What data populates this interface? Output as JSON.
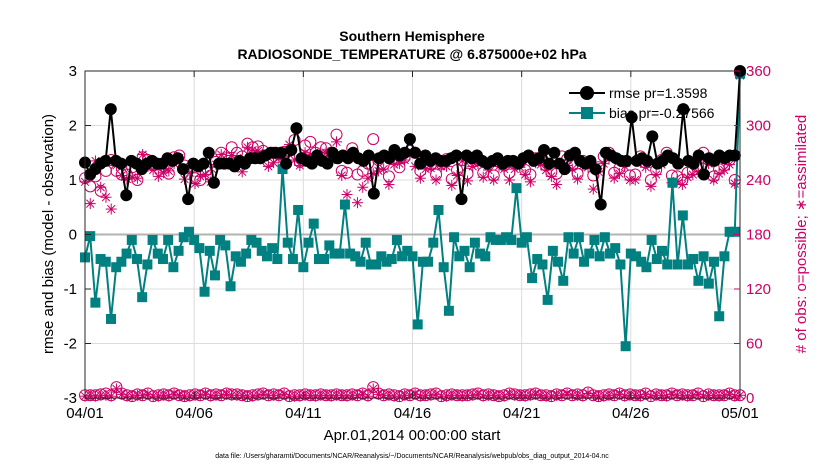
{
  "chart_data": {
    "type": "line",
    "title": "Southern Hemisphere",
    "subtitle": "RADIOSONDE_TEMPERATURE @ 6.875000e+02 hPa",
    "xlabel": "Apr.01,2014 00:00:00 start",
    "ylabel_left": "rmse and bias (model - observation)",
    "ylabel_right": "# of obs: o=possible; ∗=assimilated",
    "footnote": "data file: /Users/gharamti/Documents/NCAR/Reanalysis/~/Documents/NCAR/Reanalysis/webpub/obs_diag_output_2014-04.nc",
    "x_range": [
      0,
      30
    ],
    "y_left_range": [
      -3,
      3
    ],
    "y_right_range": [
      0,
      360
    ],
    "x_ticks": [
      0,
      5,
      10,
      15,
      20,
      25,
      30
    ],
    "x_tick_labels": [
      "04/01",
      "04/06",
      "04/11",
      "04/16",
      "04/21",
      "04/26",
      "05/01"
    ],
    "y_left_ticks": [
      -3,
      -2,
      -1,
      0,
      1,
      2,
      3
    ],
    "y_left_tick_labels": [
      "-3",
      "-2",
      "-1",
      "0",
      "1",
      "2",
      "3"
    ],
    "y_right_ticks": [
      0,
      60,
      120,
      180,
      240,
      300,
      360
    ],
    "y_right_tick_labels": [
      "0",
      "60",
      "120",
      "180",
      "240",
      "300",
      "360"
    ],
    "grid": true,
    "legend_position": "top-right",
    "colors": {
      "rmse": "#000000",
      "bias": "#008080",
      "obs": "#cc0066",
      "zero": "#b3b3b3"
    },
    "series": [
      {
        "name": "rmse pr=1.3598",
        "axis": "left",
        "values": [
          1.32,
          1.1,
          1.2,
          1.3,
          1.35,
          2.3,
          1.35,
          1.3,
          0.72,
          1.35,
          1.3,
          1.2,
          1.3,
          1.35,
          1.3,
          1.3,
          1.4,
          1.35,
          1.4,
          1.2,
          0.65,
          1.3,
          1.25,
          1.3,
          1.5,
          0.95,
          1.3,
          1.3,
          1.3,
          1.25,
          1.35,
          1.3,
          1.4,
          1.4,
          1.4,
          1.45,
          1.5,
          1.5,
          1.5,
          1.3,
          1.55,
          1.95,
          1.4,
          1.35,
          1.3,
          1.45,
          1.35,
          1.3,
          1.5,
          1.4,
          1.45,
          1.4,
          1.5,
          1.4,
          1.35,
          1.45,
          0.75,
          1.4,
          1.45,
          1.4,
          1.55,
          1.45,
          1.5,
          1.75,
          1.5,
          1.3,
          1.45,
          1.35,
          1.4,
          1.35,
          1.35,
          1.4,
          1.45,
          0.65,
          1.45,
          1.4,
          1.45,
          1.35,
          1.3,
          1.35,
          1.4,
          1.3,
          1.35,
          1.35,
          1.3,
          1.4,
          1.45,
          1.35,
          1.4,
          1.55,
          1.3,
          1.5,
          1.3,
          1.2,
          1.45,
          1.5,
          1.35,
          1.3,
          1.35,
          1.2,
          0.55,
          1.5,
          1.45,
          1.4,
          1.35,
          1.35,
          2.15,
          1.35,
          1.4,
          1.35,
          1.8,
          1.3,
          1.35,
          1.45,
          1.4,
          1.3,
          2.3,
          1.35,
          1.3,
          1.45,
          1.1,
          1.4,
          1.35,
          1.45,
          1.4,
          1.45,
          1.45,
          3.0
        ]
      },
      {
        "name": "bias pr=-0.27566",
        "axis": "left",
        "values": [
          -0.42,
          -0.03,
          -1.25,
          -0.45,
          -0.5,
          -1.55,
          -0.6,
          -0.5,
          -0.35,
          -0.1,
          -0.45,
          -1.15,
          -0.55,
          -0.1,
          -0.35,
          -0.45,
          -0.1,
          -0.6,
          -0.3,
          -0.05,
          0.05,
          -0.1,
          -0.25,
          -1.05,
          -0.3,
          -0.75,
          -0.1,
          -0.2,
          -0.95,
          -0.4,
          -0.5,
          -0.35,
          -0.1,
          -0.15,
          -0.3,
          -0.4,
          -0.25,
          -0.45,
          1.2,
          -0.15,
          -0.45,
          0.45,
          -0.6,
          -0.15,
          0.2,
          -0.45,
          -0.45,
          -0.2,
          -0.35,
          -0.35,
          0.55,
          -0.35,
          -0.4,
          -0.5,
          -0.15,
          -0.55,
          -0.55,
          -0.4,
          -0.5,
          -0.45,
          -0.1,
          -0.4,
          -0.3,
          -0.4,
          -1.65,
          -0.5,
          -0.5,
          -0.15,
          0.45,
          -0.6,
          -1.4,
          -0.05,
          -0.4,
          -0.3,
          -0.6,
          -0.15,
          -0.35,
          -0.4,
          -0.05,
          -0.1,
          -0.1,
          -0.05,
          -0.1,
          0.85,
          -0.15,
          -0.05,
          -0.8,
          -0.45,
          -0.55,
          -1.2,
          -0.3,
          -0.5,
          -0.85,
          -0.05,
          -0.35,
          -0.05,
          -0.5,
          -0.35,
          -0.1,
          -0.4,
          -0.05,
          -0.35,
          -0.25,
          -0.55,
          -2.05,
          -0.35,
          -0.4,
          -0.5,
          -0.6,
          -0.1,
          -0.45,
          -0.3,
          -0.55,
          0.95,
          -0.55,
          0.35,
          -0.55,
          -0.45,
          -0.85,
          -0.4,
          -0.9,
          -0.5,
          -1.5,
          -0.4,
          0.05,
          0.05,
          2.95
        ]
      }
    ],
    "obs_count_axis": "right",
    "obs_possible_series": [
      242,
      233,
      244,
      228,
      250,
      262,
      250,
      246,
      246,
      254,
      240,
      265,
      262,
      256,
      257,
      255,
      247,
      265,
      267,
      256,
      253,
      242,
      240,
      250,
      245,
      260,
      270,
      264,
      276,
      270,
      266,
      280,
      276,
      277,
      272,
      260,
      270,
      268,
      271,
      272,
      284,
      260,
      278,
      282,
      270,
      276,
      275,
      270,
      290,
      250,
      248,
      275,
      246,
      250,
      258,
      285,
      262,
      257,
      244,
      270,
      254,
      265,
      272,
      270,
      250,
      262,
      257,
      246,
      258,
      263,
      241,
      251,
      262,
      247,
      260,
      262,
      248,
      257,
      245,
      260,
      256,
      248,
      258,
      259,
      251,
      246,
      264,
      262,
      256,
      249,
      247,
      266,
      263,
      256,
      247,
      261,
      259,
      245,
      254,
      266,
      270,
      248,
      253,
      260,
      245,
      246,
      266,
      259,
      240,
      251,
      262,
      270,
      245,
      244,
      240,
      248,
      251,
      255,
      270,
      262,
      244,
      252,
      256,
      262,
      240,
      358
    ],
    "obs_assim_series": [
      238,
      214,
      261,
      232,
      221,
      208,
      256,
      245,
      241,
      243,
      242,
      268,
      255,
      251,
      244,
      248,
      250,
      258,
      264,
      241,
      248,
      236,
      244,
      246,
      238,
      257,
      268,
      262,
      267,
      264,
      249,
      276,
      273,
      272,
      268,
      255,
      259,
      264,
      260,
      279,
      262,
      256,
      270,
      268,
      265,
      270,
      270,
      262,
      282,
      245,
      224,
      270,
      215,
      232,
      242,
      247,
      250,
      252,
      235,
      257,
      258,
      262,
      268,
      255,
      242,
      252,
      253,
      240,
      255,
      255,
      234,
      245,
      261,
      239,
      255,
      258,
      243,
      251,
      240,
      255,
      252,
      240,
      252,
      254,
      246,
      238,
      259,
      257,
      251,
      244,
      235,
      259,
      256,
      252,
      241,
      256,
      254,
      230,
      249,
      258,
      263,
      242,
      247,
      255,
      240,
      240,
      260,
      254,
      233,
      246,
      257,
      263,
      237,
      239,
      235,
      243,
      246,
      249,
      264,
      258,
      240,
      247,
      251,
      257,
      236,
      355
    ],
    "obs_possible_used": [
      3,
      3,
      3,
      4,
      5,
      3,
      12,
      5,
      3,
      2,
      4,
      3,
      5,
      2,
      3,
      4,
      3,
      5,
      3,
      2,
      3,
      4,
      3,
      5,
      3,
      4,
      3,
      5,
      4,
      4,
      3,
      2,
      3,
      4,
      5,
      3,
      4,
      3,
      5,
      2,
      3,
      3,
      4,
      3,
      3,
      4,
      3,
      3,
      4,
      3,
      3,
      4,
      3,
      5,
      3,
      12,
      5,
      3,
      4,
      3,
      2,
      4,
      3,
      5,
      3,
      3,
      4,
      5,
      2,
      3,
      4,
      3,
      3,
      3,
      4,
      5,
      3,
      4,
      3,
      2,
      3,
      5,
      4,
      3,
      3,
      4,
      5,
      3,
      3,
      2,
      4,
      3,
      5,
      3,
      4,
      3,
      6,
      3,
      2,
      3,
      4,
      3,
      5,
      3,
      4,
      3,
      3,
      5,
      2,
      4,
      3,
      3,
      5,
      3,
      4,
      3,
      3,
      5,
      2,
      4,
      3,
      3,
      3,
      5,
      3,
      3
    ],
    "obs_assim_used": [
      2,
      3,
      2,
      3,
      3,
      2,
      10,
      4,
      2,
      2,
      3,
      3,
      4,
      2,
      2,
      3,
      2,
      4,
      3,
      2,
      2,
      3,
      3,
      4,
      2,
      3,
      3,
      4,
      3,
      3,
      3,
      2,
      2,
      3,
      4,
      3,
      3,
      3,
      4,
      2,
      2,
      2,
      3,
      3,
      2,
      3,
      3,
      2,
      3,
      3,
      2,
      3,
      3,
      4,
      2,
      10,
      4,
      3,
      3,
      2,
      2,
      3,
      3,
      4,
      2,
      3,
      3,
      4,
      2,
      2,
      3,
      3,
      2,
      3,
      3,
      4,
      2,
      3,
      3,
      2,
      2,
      4,
      3,
      3,
      2,
      3,
      4,
      3,
      2,
      2,
      3,
      3,
      4,
      3,
      3,
      2,
      5,
      3,
      2,
      2,
      3,
      3,
      4,
      2,
      3,
      3,
      2,
      4,
      2,
      3,
      3,
      2,
      4,
      3,
      3,
      2,
      3,
      4,
      2,
      3,
      3,
      2,
      3,
      4,
      2,
      3
    ]
  }
}
